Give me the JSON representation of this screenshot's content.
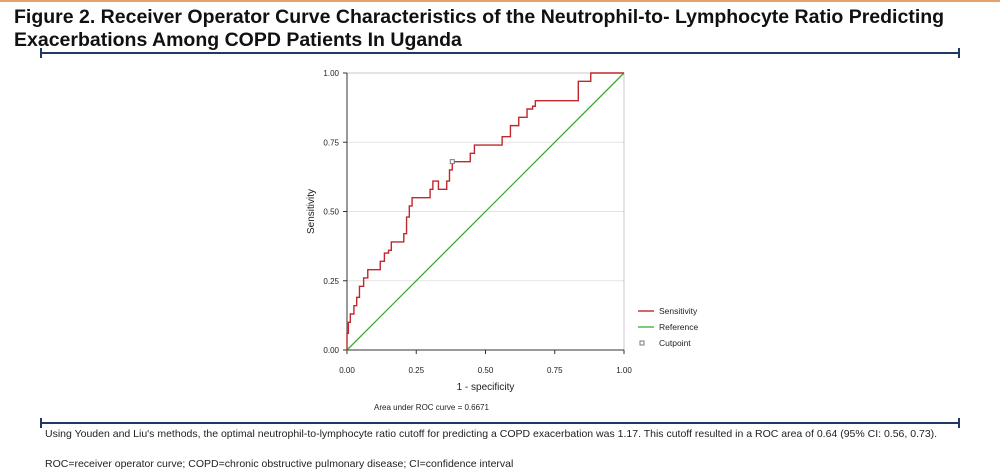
{
  "figure": {
    "title": "Figure 2. Receiver Operator Curve Characteristics of the Neutrophil-to- Lymphocyte Ratio Predicting Exacerbations Among COPD Patients In Uganda",
    "note_1": "Using Youden and Liu's methods, the optimal neutrophil-to-lymphocyte ratio cutoff for predicting a COPD exacerbation was 1.17. This cutoff resulted in a ROC area of 0.64 (95% CI: 0.56, 0.73).",
    "note_2": "ROC=receiver operator curve; COPD=chronic obstructive pulmonary disease; CI=confidence interval"
  },
  "chart_data": {
    "type": "line",
    "xlabel": "1 - specificity",
    "ylabel": "Sensitivity",
    "xlim": [
      0,
      1
    ],
    "ylim": [
      0,
      1
    ],
    "xticks": [
      "0.00",
      "0.25",
      "0.50",
      "0.75",
      "1.00"
    ],
    "yticks": [
      "0.00",
      "0.25",
      "0.50",
      "0.75",
      "1.00"
    ],
    "grid": true,
    "legend_position": "right",
    "annotation": "Area under ROC curve = 0.6671",
    "colors": {
      "sensitivity": "#c0282d",
      "reference": "#3aaa35",
      "cutpoint": "#777777"
    },
    "series": [
      {
        "name": "Sensitivity",
        "x": [
          0.0,
          0.0,
          0.005,
          0.005,
          0.012,
          0.012,
          0.025,
          0.025,
          0.035,
          0.035,
          0.045,
          0.045,
          0.06,
          0.06,
          0.075,
          0.075,
          0.12,
          0.12,
          0.135,
          0.135,
          0.15,
          0.15,
          0.16,
          0.16,
          0.205,
          0.205,
          0.215,
          0.215,
          0.225,
          0.225,
          0.235,
          0.235,
          0.3,
          0.3,
          0.31,
          0.31,
          0.33,
          0.33,
          0.36,
          0.36,
          0.37,
          0.37,
          0.38,
          0.38,
          0.39,
          0.39,
          0.445,
          0.445,
          0.46,
          0.46,
          0.56,
          0.56,
          0.59,
          0.59,
          0.62,
          0.62,
          0.65,
          0.65,
          0.67,
          0.67,
          0.68,
          0.68,
          0.69,
          0.69,
          0.7,
          0.7,
          0.835,
          0.835,
          0.88,
          0.88,
          1.0
        ],
        "y": [
          0.0,
          0.06,
          0.06,
          0.1,
          0.1,
          0.13,
          0.13,
          0.16,
          0.16,
          0.19,
          0.19,
          0.23,
          0.23,
          0.26,
          0.26,
          0.29,
          0.29,
          0.32,
          0.32,
          0.35,
          0.35,
          0.36,
          0.36,
          0.39,
          0.39,
          0.42,
          0.42,
          0.48,
          0.48,
          0.52,
          0.52,
          0.55,
          0.55,
          0.58,
          0.58,
          0.61,
          0.61,
          0.58,
          0.58,
          0.61,
          0.61,
          0.65,
          0.65,
          0.68,
          0.68,
          0.68,
          0.68,
          0.71,
          0.71,
          0.74,
          0.74,
          0.77,
          0.77,
          0.81,
          0.81,
          0.84,
          0.84,
          0.87,
          0.87,
          0.88,
          0.88,
          0.9,
          0.9,
          0.9,
          0.9,
          0.9,
          0.9,
          0.97,
          0.97,
          1.0,
          1.0
        ]
      },
      {
        "name": "Reference",
        "x": [
          0,
          1
        ],
        "y": [
          0,
          1
        ]
      },
      {
        "name": "Cutpoint",
        "x": [
          0.38
        ],
        "y": [
          0.68
        ]
      }
    ]
  }
}
